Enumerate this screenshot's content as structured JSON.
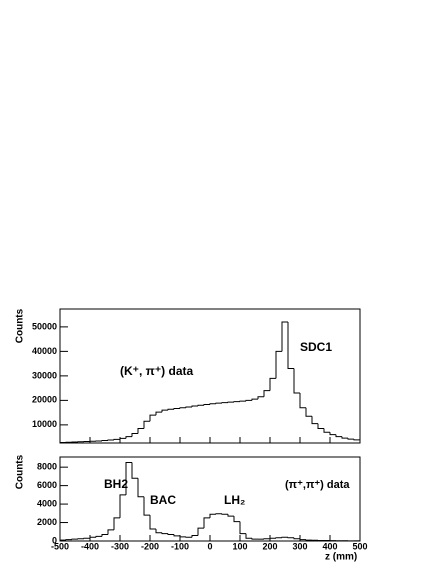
{
  "chart_data": [
    {
      "type": "histogram",
      "y_label": "Counts",
      "annotations": [
        "(K⁺, π⁺) data",
        "SDC1"
      ],
      "bins": [
        -500,
        -480,
        -460,
        -440,
        -420,
        -400,
        -380,
        -360,
        -340,
        -320,
        -300,
        -280,
        -260,
        -240,
        -220,
        -200,
        -180,
        -160,
        -140,
        -120,
        -100,
        -80,
        -60,
        -40,
        -20,
        0,
        20,
        40,
        60,
        80,
        100,
        120,
        140,
        160,
        180,
        200,
        220,
        240,
        260,
        280,
        300,
        320,
        340,
        360,
        380,
        400,
        420,
        440,
        460,
        480,
        500
      ],
      "values": [
        2800,
        2900,
        3000,
        3100,
        3200,
        3300,
        3400,
        3600,
        3800,
        4100,
        4500,
        5200,
        6500,
        8500,
        11500,
        14000,
        15200,
        16000,
        16400,
        16700,
        17000,
        17300,
        17700,
        18000,
        18300,
        18600,
        18900,
        19100,
        19300,
        19500,
        19700,
        20000,
        20500,
        21500,
        24000,
        29000,
        40000,
        52000,
        33000,
        23000,
        17000,
        13500,
        10500,
        8500,
        7000,
        6000,
        5200,
        4600,
        4200,
        3900
      ],
      "color": "#000000",
      "xlim": [
        -500,
        500
      ],
      "xticks": [
        -500,
        -400,
        -300,
        -200,
        -100,
        0,
        100,
        200,
        300,
        400,
        500
      ],
      "ylim": [
        2600,
        57300
      ],
      "yticks": [
        10000,
        20000,
        30000,
        40000,
        50000
      ]
    },
    {
      "type": "histogram",
      "y_label": "Counts",
      "x_label": "z (mm)",
      "annotations": [
        "BH2",
        "BAC",
        "LH₂",
        "(π⁺,π⁺) data"
      ],
      "bins": [
        -500,
        -480,
        -460,
        -440,
        -420,
        -400,
        -380,
        -360,
        -340,
        -320,
        -300,
        -280,
        -260,
        -240,
        -220,
        -200,
        -180,
        -160,
        -140,
        -120,
        -100,
        -80,
        -60,
        -40,
        -20,
        0,
        20,
        40,
        60,
        80,
        100,
        120,
        140,
        160,
        180,
        200,
        220,
        240,
        260,
        280,
        300,
        320,
        340,
        360,
        380,
        400,
        420,
        440,
        460,
        480,
        500
      ],
      "values": [
        100,
        150,
        200,
        250,
        300,
        400,
        500,
        700,
        1200,
        2500,
        5000,
        8500,
        6800,
        4800,
        2800,
        1300,
        900,
        800,
        700,
        550,
        450,
        400,
        600,
        1400,
        2500,
        2900,
        2950,
        2900,
        2700,
        2100,
        800,
        300,
        200,
        200,
        250,
        300,
        350,
        400,
        350,
        250,
        150,
        100,
        80,
        60,
        50,
        40,
        30,
        30,
        20,
        20
      ],
      "color": "#000000",
      "xlim": [
        -500,
        500
      ],
      "xticks": [
        -500,
        -400,
        -300,
        -200,
        -100,
        0,
        100,
        200,
        300,
        400,
        500
      ],
      "ylim": [
        0,
        9100
      ],
      "yticks": [
        0,
        2000,
        4000,
        6000,
        8000
      ]
    }
  ]
}
